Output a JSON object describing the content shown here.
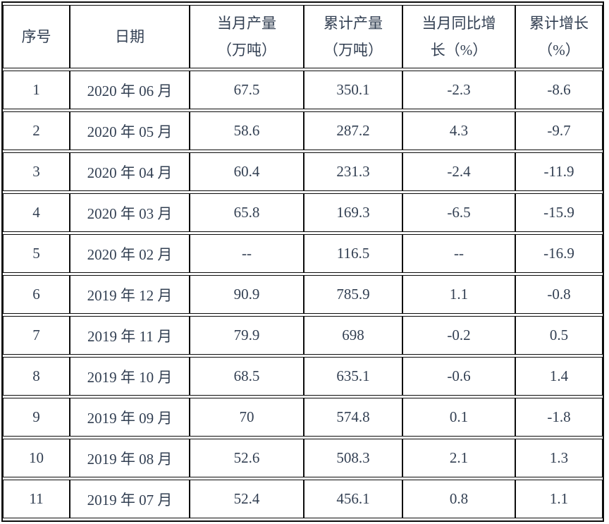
{
  "page": {
    "background": "#ffffff",
    "text_color": "#323f52",
    "border_color": "#0d0d0d"
  },
  "table": {
    "columns": [
      {
        "key": "index",
        "label_lines": [
          "序号"
        ]
      },
      {
        "key": "date",
        "label_lines": [
          "日期"
        ]
      },
      {
        "key": "monthly_output",
        "label_lines": [
          "当月产量",
          "（万吨）"
        ]
      },
      {
        "key": "cumulative_output",
        "label_lines": [
          "累计产量",
          "（万吨）"
        ]
      },
      {
        "key": "monthly_yoy_growth",
        "label_lines": [
          "当月同比增",
          "长（%）"
        ]
      },
      {
        "key": "cumulative_growth",
        "label_lines": [
          "累计增长",
          "（%）"
        ]
      }
    ],
    "rows": [
      [
        "1",
        "2020 年 06 月",
        "67.5",
        "350.1",
        "-2.3",
        "-8.6"
      ],
      [
        "2",
        "2020 年 05 月",
        "58.6",
        "287.2",
        "4.3",
        "-9.7"
      ],
      [
        "3",
        "2020 年 04 月",
        "60.4",
        "231.3",
        "-2.4",
        "-11.9"
      ],
      [
        "4",
        "2020 年 03 月",
        "65.8",
        "169.3",
        "-6.5",
        "-15.9"
      ],
      [
        "5",
        "2020 年 02 月",
        "--",
        "116.5",
        "--",
        "-16.9"
      ],
      [
        "6",
        "2019 年 12 月",
        "90.9",
        "785.9",
        "1.1",
        "-0.8"
      ],
      [
        "7",
        "2019 年 11 月",
        "79.9",
        "698",
        "-0.2",
        "0.5"
      ],
      [
        "8",
        "2019 年 10 月",
        "68.5",
        "635.1",
        "-0.6",
        "1.4"
      ],
      [
        "9",
        "2019 年 09 月",
        "70",
        "574.8",
        "0.1",
        "-1.8"
      ],
      [
        "10",
        "2019 年 08 月",
        "52.6",
        "508.3",
        "2.1",
        "1.3"
      ],
      [
        "11",
        "2019 年 07 月",
        "52.4",
        "456.1",
        "0.8",
        "1.1"
      ]
    ]
  }
}
